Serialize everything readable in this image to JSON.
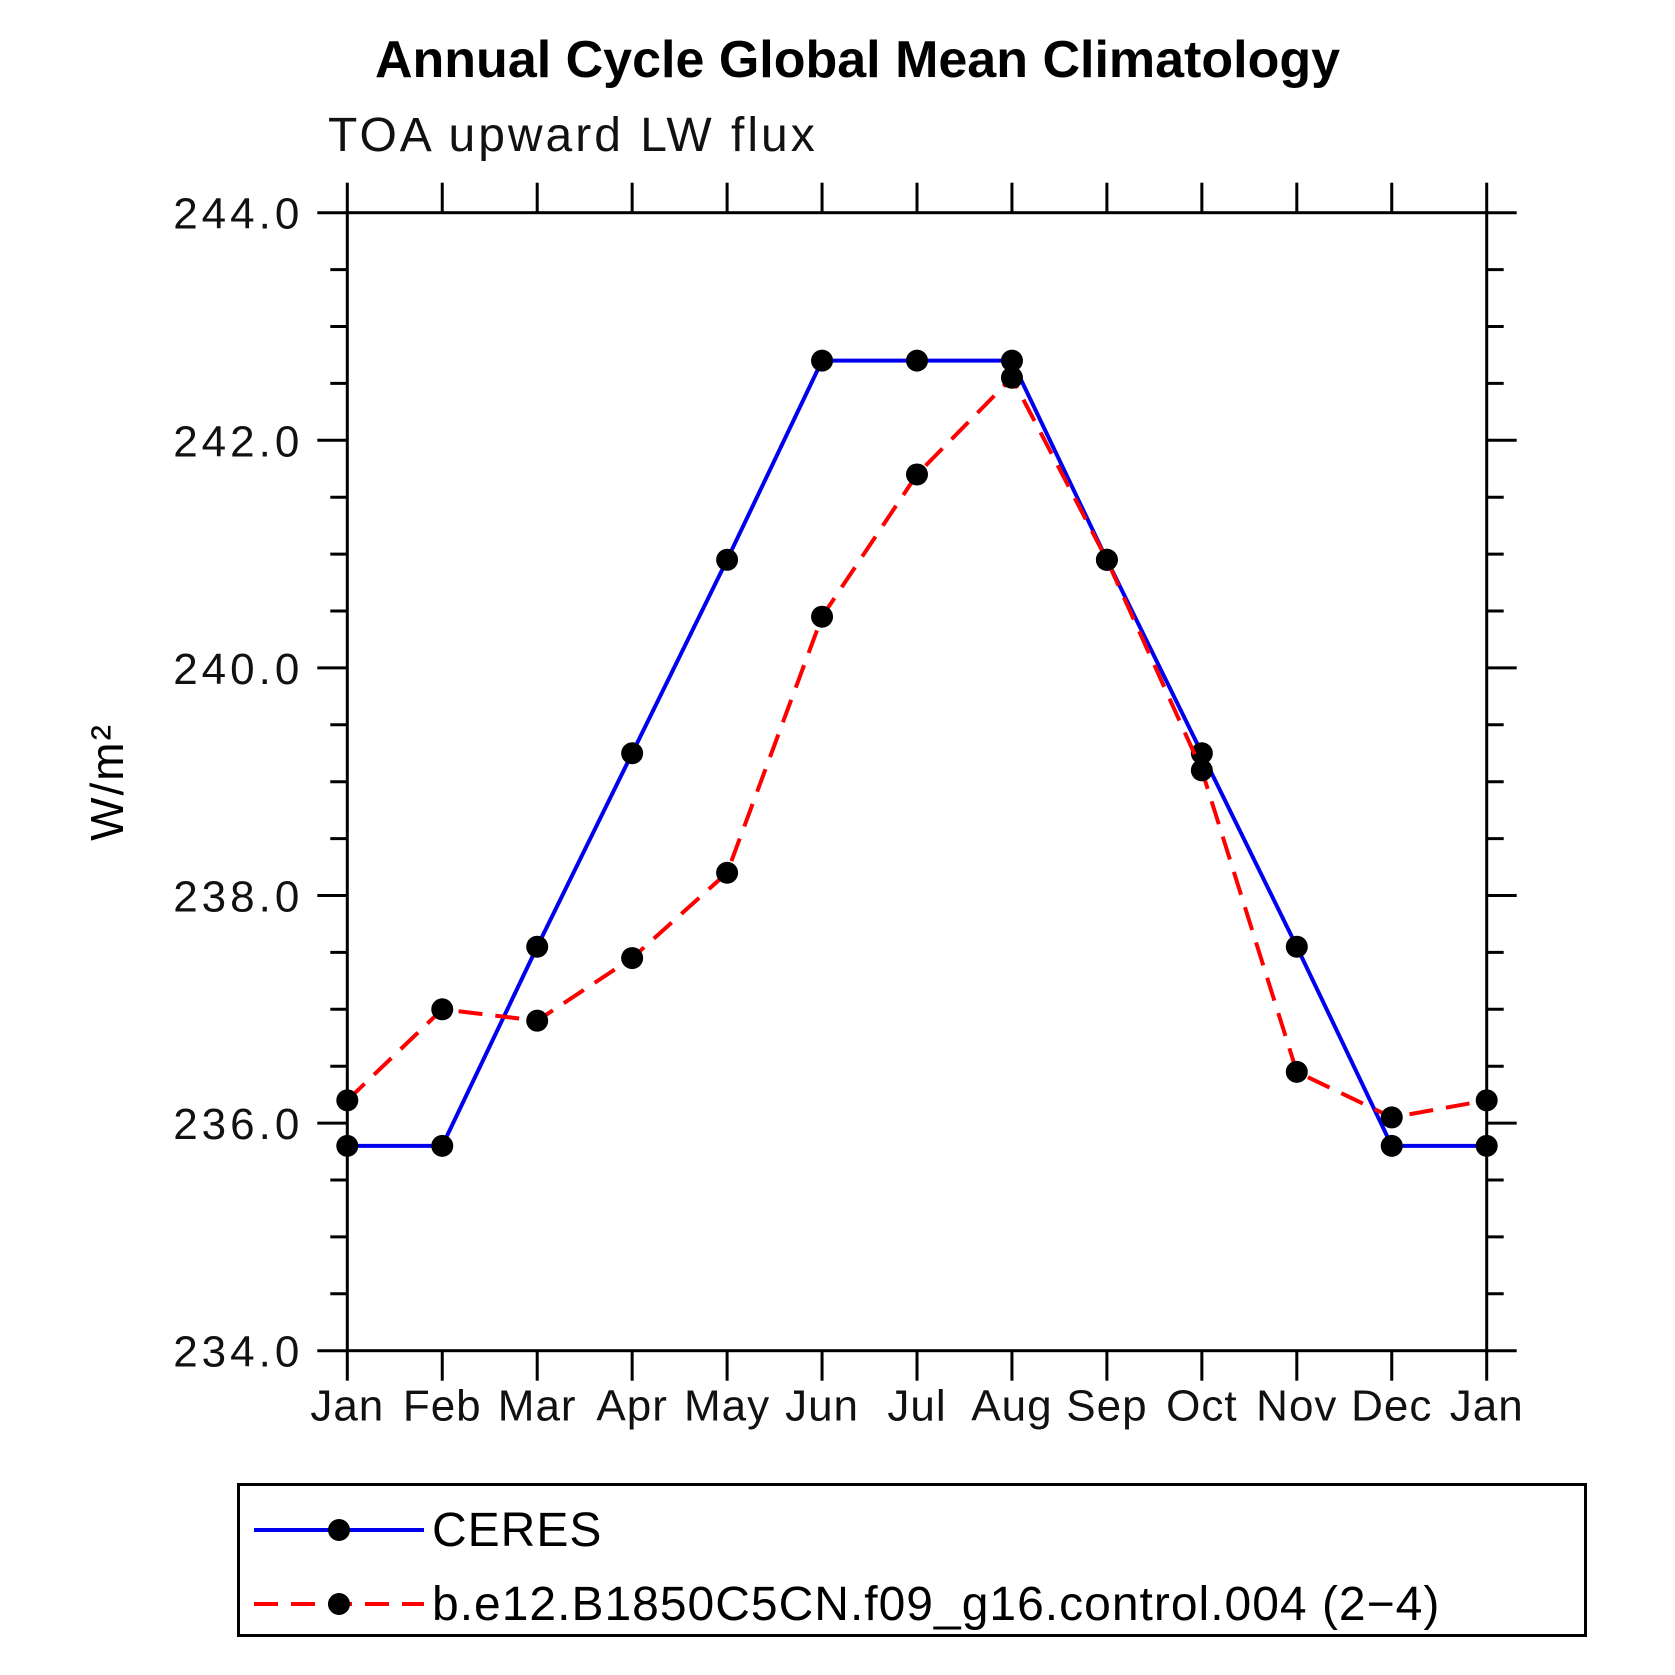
{
  "title": "Annual Cycle Global Mean Climatology",
  "subtitle": "TOA upward LW flux",
  "ylabel": "W/m²",
  "chart_data": {
    "type": "line",
    "categories": [
      "Jan",
      "Feb",
      "Mar",
      "Apr",
      "May",
      "Jun",
      "Jul",
      "Aug",
      "Sep",
      "Oct",
      "Nov",
      "Dec",
      "Jan"
    ],
    "series": [
      {
        "name": "CERES",
        "color": "#0000ee",
        "line_style": "solid",
        "marker": "circle",
        "marker_color": "#000000",
        "values": [
          235.8,
          235.8,
          237.55,
          239.25,
          240.95,
          242.7,
          242.7,
          242.7,
          240.95,
          239.25,
          237.55,
          235.8,
          235.8
        ]
      },
      {
        "name": "b.e12.B1850C5CN.f09_g16.control.004 (2−4)",
        "color": "#ff0000",
        "line_style": "dashed",
        "marker": "circle",
        "marker_color": "#000000",
        "values": [
          236.2,
          237.0,
          236.9,
          237.45,
          238.2,
          240.45,
          241.7,
          242.55,
          240.95,
          239.1,
          236.45,
          236.05,
          236.2
        ]
      }
    ],
    "ylim": [
      234.0,
      244.0
    ],
    "ytick_major_step": 2.0,
    "ytick_minor_step": 0.5,
    "ytick_label_format": "one_decimal",
    "grid": false,
    "legend_position": "bottom",
    "axis_color": "#000000"
  }
}
